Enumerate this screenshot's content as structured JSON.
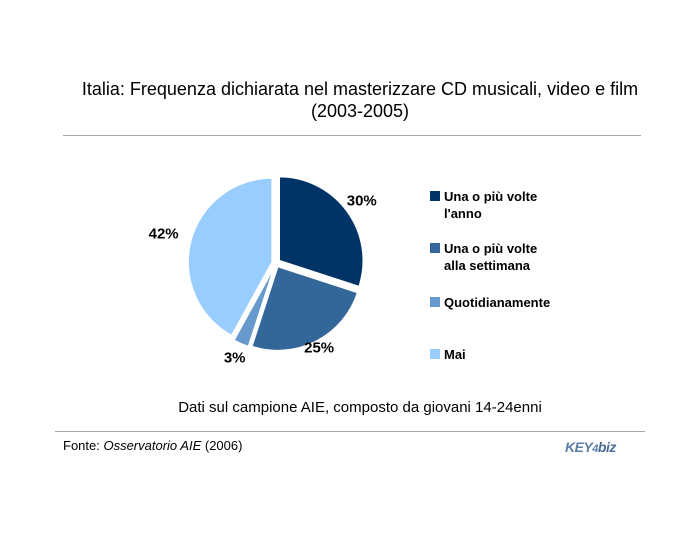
{
  "chart_data": {
    "type": "pie",
    "title": "Italia: Frequenza dichiarata nel masterizzare CD musicali, video e film (2003-2005)",
    "title_line1": "Italia: Frequenza dichiarata nel masterizzare CD musicali, video e film",
    "title_line2": "(2003-2005)",
    "subtitle": "Dati sul campione AIE, composto da giovani 14-24enni",
    "legend_position": "right",
    "slices": [
      {
        "label": "Una o più volte l'anno",
        "label_line1": "Una o più volte",
        "label_line2": "l'anno",
        "value": 30,
        "display": "30%",
        "color": "#003366"
      },
      {
        "label": "Una o più volte alla settimana",
        "label_line1": "Una o più volte",
        "label_line2": "alla settimana",
        "value": 25,
        "display": "25%",
        "color": "#336699"
      },
      {
        "label": "Quotidianamente",
        "label_line1": "Quotidianamente",
        "label_line2": "",
        "value": 3,
        "display": "3%",
        "color": "#6699cc"
      },
      {
        "label": "Mai",
        "label_line1": "Mai",
        "label_line2": "",
        "value": 42,
        "display": "42%",
        "color": "#99ccff"
      }
    ]
  },
  "source": {
    "prefix": "Fonte: ",
    "name": "Osservatorio AIE",
    "suffix": " (2006)"
  },
  "logo": {
    "part1": "KEY",
    "part2": "4",
    "part3": "biz"
  }
}
